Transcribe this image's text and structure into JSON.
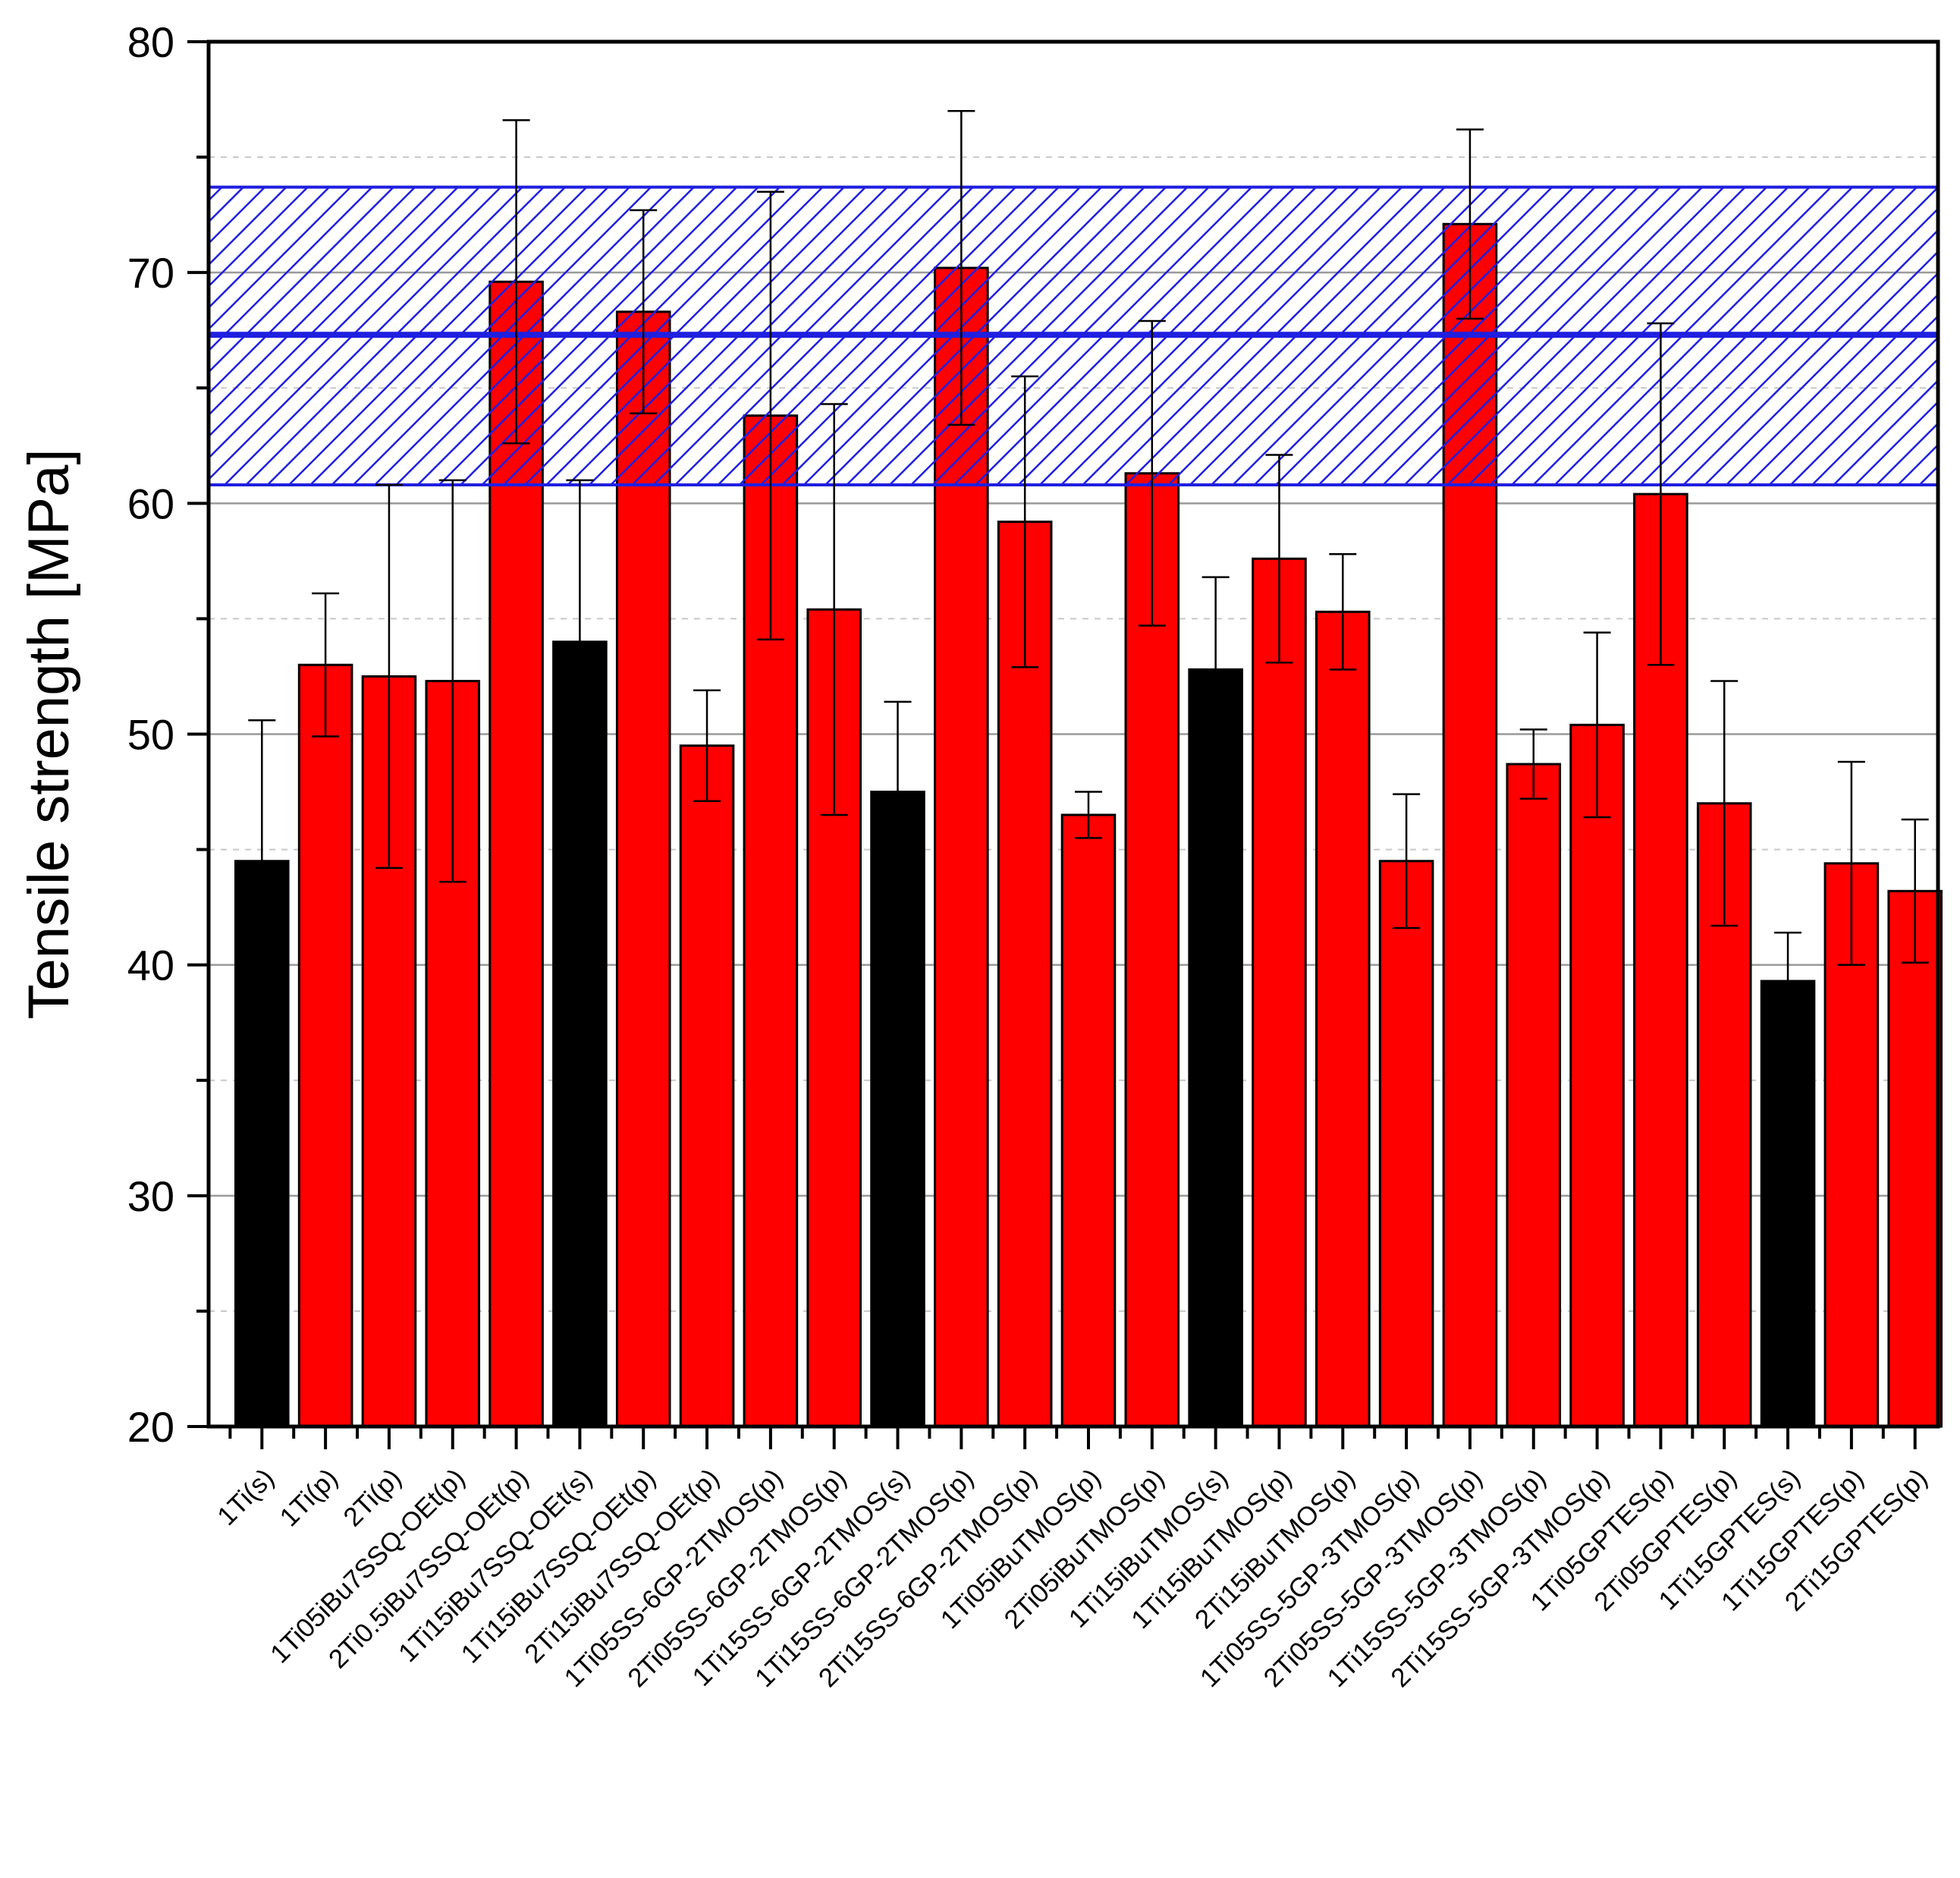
{
  "chart_data": {
    "type": "bar",
    "title": "",
    "xlabel": "",
    "ylabel": "Tensile strength [MPa]",
    "ylim": [
      20,
      80
    ],
    "yticks": [
      20,
      30,
      40,
      50,
      60,
      70,
      80
    ],
    "grid": true,
    "reference_band": {
      "center": 67.3,
      "lower": 60.8,
      "upper": 73.7,
      "color": "#1f1fe0"
    },
    "colors": {
      "s": "#000000",
      "p": "#ff0000"
    },
    "categories": [
      "1Ti(s)",
      "1Ti(p)",
      "2Ti(p)",
      "1Ti05iBu7SSQ-OEt(p)",
      "2Ti0.5iBu7SSQ-OEt(p)",
      "1Ti15iBu7SSQ-OEt(s)",
      "1Ti15iBu7SSQ-OEt(p)",
      "2Ti15iBu7SSQ-OEt(p)",
      "1Ti05SS-6GP-2TMOS(p)",
      "2Ti05SS-6GP-2TMOS(p)",
      "1Ti15SS-6GP-2TMOS(s)",
      "1Ti15SS-6GP-2TMOS(p)",
      "2Ti15SS-6GP-2TMOS(p)",
      "1Ti05iBuTMOS(p)",
      "2Ti05iBuTMOS(p)",
      "1Ti15iBuTMOS(s)",
      "1Ti15iBuTMOS(p)",
      "2Ti15iBuTMOS(p)",
      "1Ti05SS-5GP-3TMOS(p)",
      "2Ti05SS-5GP-3TMOS(p)",
      "1Ti15SS-5GP-3TMOS(p)",
      "2Ti15SS-5GP-3TMOS(p)",
      "1Ti05GPTES(p)",
      "2Ti05GPTES(p)",
      "1Ti15GPTES(s)",
      "1Ti15GPTES(p)",
      "2Ti15GPTES(p)"
    ],
    "values": [
      44.5,
      53.0,
      52.5,
      52.3,
      69.6,
      54.0,
      68.3,
      49.5,
      63.8,
      55.4,
      47.5,
      70.2,
      59.2,
      46.5,
      61.3,
      52.8,
      57.6,
      55.3,
      44.5,
      72.1,
      48.7,
      50.4,
      60.4,
      47.0,
      39.3,
      44.4,
      43.2
    ],
    "errors": [
      6.1,
      3.1,
      8.3,
      8.7,
      7.0,
      7.0,
      4.4,
      2.4,
      9.7,
      8.9,
      3.9,
      6.8,
      6.3,
      1.0,
      6.6,
      4.0,
      4.5,
      2.5,
      2.9,
      4.1,
      1.5,
      4.0,
      7.4,
      5.3,
      2.1,
      4.4,
      3.1
    ],
    "kinds": [
      "s",
      "p",
      "p",
      "p",
      "p",
      "s",
      "p",
      "p",
      "p",
      "p",
      "s",
      "p",
      "p",
      "p",
      "p",
      "s",
      "p",
      "p",
      "p",
      "p",
      "p",
      "p",
      "p",
      "p",
      "s",
      "p",
      "p"
    ]
  }
}
